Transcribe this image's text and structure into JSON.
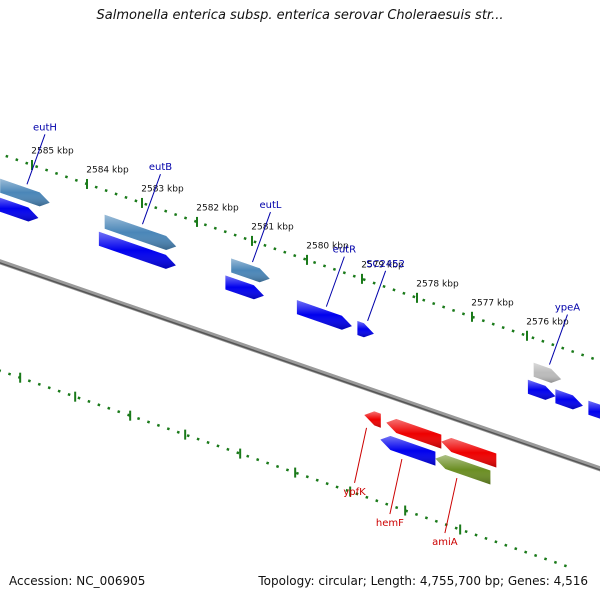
{
  "header": {
    "title": "Salmonella enterica subsp. enterica serovar Choleraesuis str..."
  },
  "footer": {
    "accession": "Accession: NC_006905",
    "stats": "Topology: circular; Length: 4,755,700 bp; Genes: 4,516"
  },
  "colors": {
    "backbone": "#7a7a7a",
    "tick_dots": "#1a7a1a",
    "forward_gene": "#0000ee",
    "forward_gene_alt": "#4a86b8",
    "reverse_gene": "#ee0000",
    "reverse_gene_alt": "#6b8e23",
    "pseudo_gene": "#bbbbbb",
    "forward_label": "#0000aa",
    "reverse_label": "#cc0000"
  },
  "scale": {
    "unit": "kbp",
    "ticks": [
      {
        "value": 2585,
        "label": "2585 kbp"
      },
      {
        "value": 2584,
        "label": "2584 kbp"
      },
      {
        "value": 2583,
        "label": "2583 kbp"
      },
      {
        "value": 2582,
        "label": "2582 kbp"
      },
      {
        "value": 2581,
        "label": "2581 kbp"
      },
      {
        "value": 2580,
        "label": "2580 kbp"
      },
      {
        "value": 2579,
        "label": "2579 kbp"
      },
      {
        "value": 2578,
        "label": "2578 kbp"
      },
      {
        "value": 2577,
        "label": "2577 kbp"
      },
      {
        "value": 2576,
        "label": "2576 kbp"
      }
    ]
  },
  "genes": {
    "forward": [
      {
        "label": "eutH",
        "color": "forward_gene_alt",
        "start": 2585.4,
        "end": 2584.5,
        "row": 0
      },
      {
        "label": "",
        "color": "forward_gene",
        "start": 2585.4,
        "end": 2584.6,
        "row": 1
      },
      {
        "label": "eutB",
        "color": "forward_gene_alt",
        "start": 2583.5,
        "end": 2582.2,
        "row": 0
      },
      {
        "label": "",
        "color": "forward_gene",
        "start": 2583.5,
        "end": 2582.1,
        "row": 1
      },
      {
        "label": "eutL",
        "color": "forward_gene_alt",
        "start": 2581.2,
        "end": 2580.5,
        "row": 0
      },
      {
        "label": "",
        "color": "forward_gene",
        "start": 2581.2,
        "end": 2580.5,
        "row": 1
      },
      {
        "label": "eutR",
        "color": "forward_gene",
        "start": 2579.9,
        "end": 2578.9,
        "row": 1
      },
      {
        "label": "SC2452",
        "color": "forward_gene",
        "start": 2578.8,
        "end": 2578.5,
        "row": 1
      },
      {
        "label": "ypeA",
        "color": "pseudo_gene",
        "start": 2575.7,
        "end": 2575.2,
        "row": 0
      },
      {
        "label": "",
        "color": "forward_gene",
        "start": 2575.7,
        "end": 2575.2,
        "row": 1
      },
      {
        "label": "",
        "color": "forward_gene",
        "start": 2575.2,
        "end": 2574.7,
        "row": 1
      },
      {
        "label": "",
        "color": "forward_gene",
        "start": 2574.6,
        "end": 2574.0,
        "row": 1
      }
    ],
    "reverse": [
      {
        "label": "ypfK",
        "color": "reverse_gene",
        "start": 2578.2,
        "end": 2577.9,
        "row": 0
      },
      {
        "label": "",
        "color": "reverse_gene",
        "start": 2577.8,
        "end": 2576.8,
        "row": 0
      },
      {
        "label": "",
        "color": "reverse_gene",
        "start": 2576.8,
        "end": 2575.8,
        "row": 0
      },
      {
        "label": "hemF",
        "color": "forward_gene",
        "start": 2577.8,
        "end": 2576.8,
        "row": 1
      },
      {
        "label": "amiA",
        "color": "reverse_gene_alt",
        "start": 2576.8,
        "end": 2575.8,
        "row": 1
      }
    ]
  }
}
